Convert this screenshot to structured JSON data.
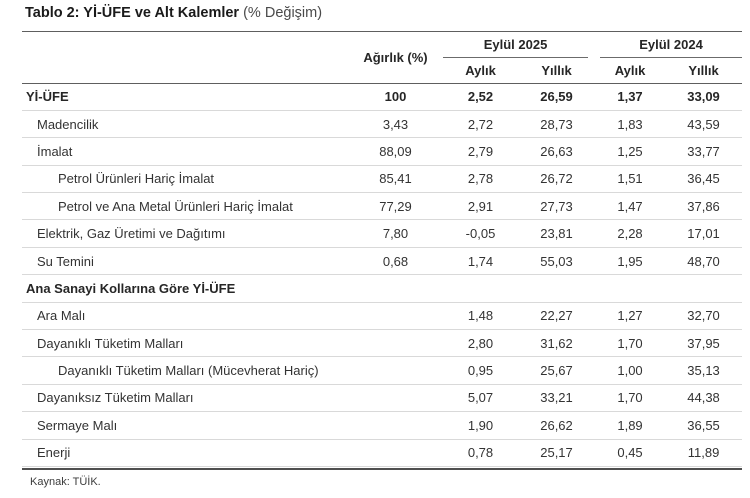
{
  "title": {
    "bold": "Tablo 2: Yİ-ÜFE ve Alt Kalemler",
    "normal": " (% Değişim)"
  },
  "table": {
    "weight_header": "Ağırlık (%)",
    "groups": [
      {
        "label": "Eylül 2025",
        "sub": [
          "Aylık",
          "Yıllık"
        ]
      },
      {
        "label": "Eylül 2024",
        "sub": [
          "Aylık",
          "Yıllık"
        ]
      }
    ],
    "rows": [
      {
        "label": "Yİ-ÜFE",
        "indent": 0,
        "bold": true,
        "values": [
          "100",
          "2,52",
          "26,59",
          "1,37",
          "33,09"
        ]
      },
      {
        "label": "Madencilik",
        "indent": 1,
        "bold": false,
        "values": [
          "3,43",
          "2,72",
          "28,73",
          "1,83",
          "43,59"
        ]
      },
      {
        "label": "İmalat",
        "indent": 1,
        "bold": false,
        "values": [
          "88,09",
          "2,79",
          "26,63",
          "1,25",
          "33,77"
        ]
      },
      {
        "label": "Petrol Ürünleri Hariç İmalat",
        "indent": 2,
        "bold": false,
        "values": [
          "85,41",
          "2,78",
          "26,72",
          "1,51",
          "36,45"
        ]
      },
      {
        "label": "Petrol ve Ana Metal Ürünleri Hariç İmalat",
        "indent": 2,
        "bold": false,
        "values": [
          "77,29",
          "2,91",
          "27,73",
          "1,47",
          "37,86"
        ]
      },
      {
        "label": "Elektrik, Gaz Üretimi ve Dağıtımı",
        "indent": 1,
        "bold": false,
        "values": [
          "7,80",
          "-0,05",
          "23,81",
          "2,28",
          "17,01"
        ]
      },
      {
        "label": "Su Temini",
        "indent": 1,
        "bold": false,
        "values": [
          "0,68",
          "1,74",
          "55,03",
          "1,95",
          "48,70"
        ]
      },
      {
        "label": "Ana Sanayi Kollarına Göre Yİ-ÜFE",
        "indent": 0,
        "bold": true,
        "values": [
          "",
          "",
          "",
          "",
          ""
        ]
      },
      {
        "label": "Ara Malı",
        "indent": 1,
        "bold": false,
        "values": [
          "",
          "1,48",
          "22,27",
          "1,27",
          "32,70"
        ]
      },
      {
        "label": "Dayanıklı Tüketim Malları",
        "indent": 1,
        "bold": false,
        "values": [
          "",
          "2,80",
          "31,62",
          "1,70",
          "37,95"
        ]
      },
      {
        "label": "Dayanıklı Tüketim Malları (Mücevherat Hariç)",
        "indent": 2,
        "bold": false,
        "values": [
          "",
          "0,95",
          "25,67",
          "1,00",
          "35,13"
        ]
      },
      {
        "label": "Dayanıksız Tüketim Malları",
        "indent": 1,
        "bold": false,
        "values": [
          "",
          "5,07",
          "33,21",
          "1,70",
          "44,38"
        ]
      },
      {
        "label": "Sermaye Malı",
        "indent": 1,
        "bold": false,
        "values": [
          "",
          "1,90",
          "26,62",
          "1,89",
          "36,55"
        ]
      },
      {
        "label": "Enerji",
        "indent": 1,
        "bold": false,
        "values": [
          "",
          "0,78",
          "25,17",
          "0,45",
          "11,89"
        ]
      }
    ]
  },
  "footer": {
    "source": "Kaynak: TÜİK."
  },
  "colors": {
    "text": "#333333",
    "title": "#1a1a1a",
    "rule_dark": "#5e5e5e",
    "divider": "#d9d9d9"
  }
}
